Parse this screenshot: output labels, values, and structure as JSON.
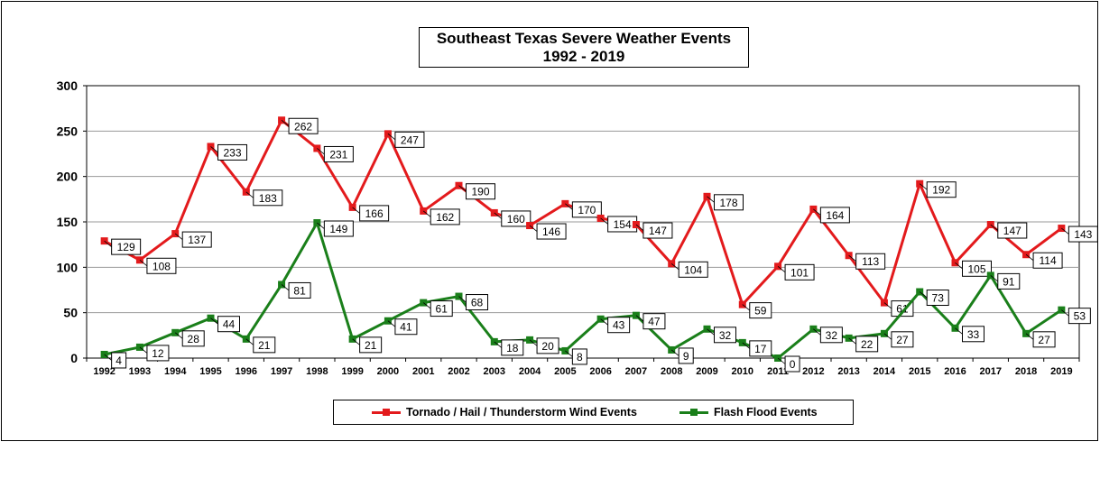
{
  "chart_data": {
    "type": "line",
    "title": "Southeast Texas Severe Weather Events",
    "subtitle": "1992 - 2019",
    "xlabel": "",
    "ylabel": "",
    "ylim": [
      0,
      300
    ],
    "yticks": [
      0,
      50,
      100,
      150,
      200,
      250,
      300
    ],
    "grid": true,
    "legend_position": "bottom",
    "categories": [
      "1992",
      "1993",
      "1994",
      "1995",
      "1996",
      "1997",
      "1998",
      "1999",
      "2000",
      "2001",
      "2002",
      "2003",
      "2004",
      "2005",
      "2006",
      "2007",
      "2008",
      "2009",
      "2010",
      "2011",
      "2012",
      "2013",
      "2014",
      "2015",
      "2016",
      "2017",
      "2018",
      "2019"
    ],
    "series": [
      {
        "name": "Tornado / Hail / Thunderstorm Wind Events",
        "color": "#e31a1c",
        "values": [
          129,
          108,
          137,
          233,
          183,
          262,
          231,
          166,
          247,
          162,
          190,
          160,
          146,
          170,
          154,
          147,
          104,
          178,
          59,
          101,
          164,
          113,
          61,
          192,
          105,
          147,
          114,
          143
        ]
      },
      {
        "name": "Flash Flood Events",
        "color": "#1a7f1a",
        "values": [
          4,
          12,
          28,
          44,
          21,
          81,
          149,
          21,
          41,
          61,
          68,
          18,
          20,
          8,
          43,
          47,
          9,
          32,
          17,
          0,
          32,
          22,
          27,
          73,
          33,
          91,
          27,
          53
        ]
      }
    ]
  }
}
